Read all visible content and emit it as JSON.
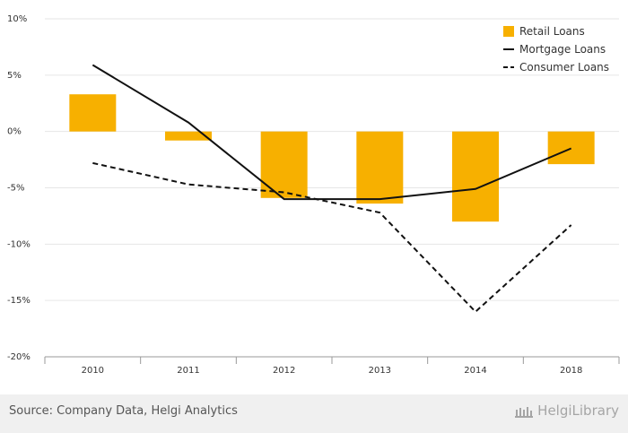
{
  "chart_data": {
    "type": "bar",
    "categories": [
      "2010",
      "2011",
      "2012",
      "2013",
      "2014",
      "2018"
    ],
    "series": [
      {
        "name": "Retail Loans",
        "kind": "bar",
        "color": "#f7b000",
        "values": [
          3.3,
          -0.8,
          -5.9,
          -6.4,
          -8.0,
          -2.9
        ]
      },
      {
        "name": "Mortgage Loans",
        "kind": "line",
        "style": "solid",
        "color": "#111111",
        "values": [
          5.9,
          0.8,
          -6.0,
          -6.0,
          -5.1,
          -1.5
        ]
      },
      {
        "name": "Consumer Loans",
        "kind": "line",
        "style": "dashed",
        "color": "#111111",
        "values": [
          -2.8,
          -4.7,
          -5.4,
          -7.2,
          -16.0,
          -8.3
        ]
      }
    ],
    "ylim": [
      -20,
      10
    ],
    "yticks": [
      10,
      5,
      0,
      -5,
      -10,
      -15,
      -20
    ],
    "ytick_labels": [
      "10%",
      "5%",
      "0%",
      "-5%",
      "-10%",
      "-15%",
      "-20%"
    ],
    "grid": true,
    "legend_position": "top-right",
    "title": "",
    "xlabel": "",
    "ylabel": ""
  },
  "footer": {
    "source": "Source: Company Data, Helgi Analytics",
    "brand": "HelgiLibrary"
  }
}
